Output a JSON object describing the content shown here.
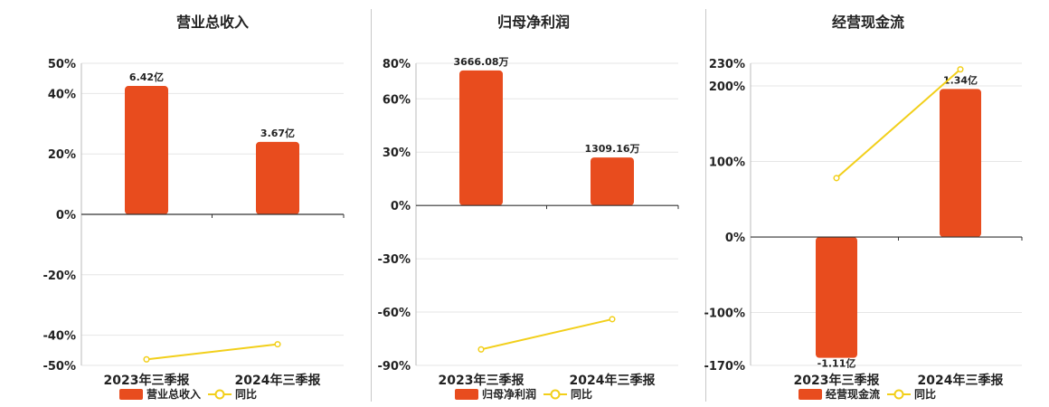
{
  "colors": {
    "bar": "#e84c1e",
    "line": "#f2cf1a",
    "grid": "#e6e6e6",
    "axis": "#333333"
  },
  "chart_data": [
    {
      "type": "bar",
      "title": "营业总收入",
      "categories": [
        "2023年三季报",
        "2024年三季报"
      ],
      "series": [
        {
          "name": "营业总收入",
          "kind": "bar",
          "values": [
            42.5,
            24.0
          ],
          "labels": [
            "6.42亿",
            "3.67亿"
          ]
        },
        {
          "name": "同比",
          "kind": "line",
          "values": [
            -48,
            -43
          ]
        }
      ],
      "yticks": [
        50,
        40,
        20,
        0,
        -20,
        -40,
        -50
      ],
      "ylim": [
        -50,
        50
      ],
      "tick_suffix": "%",
      "grid": true,
      "legend_position": "bottom"
    },
    {
      "type": "bar",
      "title": "归母净利润",
      "categories": [
        "2023年三季报",
        "2024年三季报"
      ],
      "series": [
        {
          "name": "归母净利润",
          "kind": "bar",
          "values": [
            76,
            27
          ],
          "labels": [
            "3666.08万",
            "1309.16万"
          ]
        },
        {
          "name": "同比",
          "kind": "line",
          "values": [
            -81,
            -64
          ]
        }
      ],
      "yticks": [
        80,
        60,
        30,
        0,
        -30,
        -60,
        -90
      ],
      "ylim": [
        -90,
        80
      ],
      "tick_suffix": "%",
      "grid": true,
      "legend_position": "bottom"
    },
    {
      "type": "bar",
      "title": "经营现金流",
      "categories": [
        "2023年三季报",
        "2024年三季报"
      ],
      "series": [
        {
          "name": "经营现金流",
          "kind": "bar",
          "values": [
            -160,
            196
          ],
          "labels": [
            "-1.11亿",
            "1.34亿"
          ]
        },
        {
          "name": "同比",
          "kind": "line",
          "values": [
            78,
            222
          ]
        }
      ],
      "yticks": [
        230,
        200,
        100,
        0,
        -100,
        -170
      ],
      "ylim": [
        -170,
        230
      ],
      "tick_suffix": "%",
      "grid": true,
      "legend_position": "bottom"
    }
  ]
}
